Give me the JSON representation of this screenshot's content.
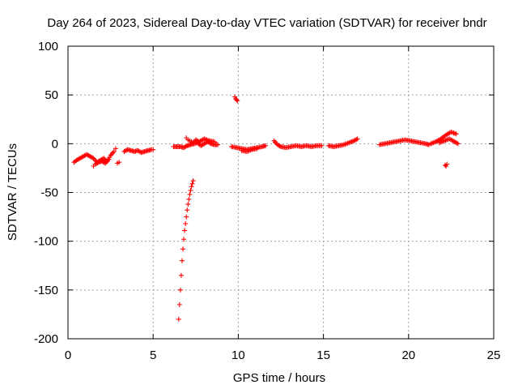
{
  "chart_data": {
    "type": "scatter",
    "title": "Day 264 of 2023, Sidereal Day-to-day VTEC variation (SDTVAR) for receiver bndr",
    "xlabel": "GPS time / hours",
    "ylabel": "SDTVAR / TECUs",
    "xlim": [
      0,
      25
    ],
    "ylim": [
      -200,
      100
    ],
    "xticks": [
      "0",
      "5",
      "10",
      "15",
      "20",
      "25"
    ],
    "yticks": [
      "100",
      "50",
      "0",
      "-50",
      "-100",
      "-150",
      "-200"
    ],
    "grid": true,
    "marker": "+",
    "color": "#ff0000",
    "series": [
      {
        "name": "SDTVAR",
        "segments": [
          {
            "x": [
              0.35,
              0.5,
              0.7,
              0.9,
              1.1,
              1.3,
              1.5,
              1.7,
              1.9,
              2.1,
              2.3,
              2.5,
              2.7,
              2.8
            ],
            "y": [
              -19,
              -17,
              -15,
              -13,
              -11,
              -13,
              -15,
              -19,
              -17,
              -15,
              -18,
              -12,
              -8,
              -5
            ]
          },
          {
            "x": [
              1.5,
              1.6,
              1.8,
              2.0,
              2.2,
              2.4
            ],
            "y": [
              -23,
              -21,
              -19,
              -18,
              -20,
              -16
            ]
          },
          {
            "x": [
              2.9,
              3.0
            ],
            "y": [
              -20,
              -19
            ]
          },
          {
            "x": [
              3.3,
              3.5,
              3.7,
              3.9,
              4.1,
              4.3,
              4.5,
              4.7,
              4.9,
              5.0
            ],
            "y": [
              -8,
              -6,
              -7,
              -8,
              -7,
              -9,
              -8,
              -7,
              -6,
              -6
            ]
          },
          {
            "x": [
              6.2,
              6.4,
              6.6,
              6.8,
              7.0,
              7.2,
              7.4,
              7.6,
              7.8,
              8.0,
              8.2,
              8.4,
              8.6,
              8.8
            ],
            "y": [
              -3,
              -3,
              -3,
              -4,
              -2,
              -1,
              0,
              1,
              -2,
              0,
              2,
              0,
              -1,
              -1
            ]
          },
          {
            "x": [
              6.95,
              7.05,
              7.15,
              7.25,
              7.35,
              7.5,
              7.7,
              8.0,
              8.3,
              8.6
            ],
            "y": [
              6,
              4,
              3,
              2,
              1,
              4,
              2,
              5,
              3,
              2
            ]
          },
          {
            "x": [
              6.5,
              6.55,
              6.6,
              6.65,
              6.7,
              6.75,
              6.8,
              6.85,
              6.9,
              6.95,
              7.0,
              7.05,
              7.1,
              7.15,
              7.2,
              7.25,
              7.3,
              7.35
            ],
            "y": [
              -180,
              -165,
              -150,
              -135,
              -120,
              -108,
              -98,
              -89,
              -82,
              -75,
              -68,
              -62,
              -57,
              -52,
              -48,
              -44,
              -41,
              -38
            ]
          },
          {
            "x": [
              9.8,
              9.85,
              9.9,
              9.95
            ],
            "y": [
              48,
              46,
              45,
              44
            ]
          },
          {
            "x": [
              9.6,
              9.9,
              10.2,
              10.5,
              10.8,
              11.1,
              11.4,
              11.6
            ],
            "y": [
              -3,
              -4,
              -5,
              -6,
              -5,
              -4,
              -3,
              -2
            ]
          },
          {
            "x": [
              10.2,
              10.5,
              10.8,
              11.1
            ],
            "y": [
              -7,
              -8,
              -6,
              -5
            ]
          },
          {
            "x": [
              12.1,
              12.3,
              12.5,
              12.8,
              13.1,
              13.4,
              13.7,
              14.0,
              14.3,
              14.6,
              14.9
            ],
            "y": [
              3,
              -1,
              -3,
              -4,
              -3,
              -2,
              -3,
              -2,
              -3,
              -2,
              -2
            ]
          },
          {
            "x": [
              15.3,
              15.6,
              15.9,
              16.2,
              16.5,
              16.8,
              17.0
            ],
            "y": [
              -2,
              -3,
              -2,
              -1,
              1,
              3,
              5
            ]
          },
          {
            "x": [
              18.3,
              18.6,
              18.9,
              19.2,
              19.5,
              19.8,
              20.1,
              20.4,
              20.7,
              21.0,
              21.2
            ],
            "y": [
              -1,
              0,
              1,
              2,
              3,
              4,
              3,
              2,
              1,
              0,
              -1
            ]
          },
          {
            "x": [
              21.3,
              21.6,
              21.9,
              22.2,
              22.5,
              22.8
            ],
            "y": [
              0,
              2,
              5,
              9,
              12,
              10
            ]
          },
          {
            "x": [
              21.8,
              22.1,
              22.4,
              22.7,
              22.9
            ],
            "y": [
              1,
              3,
              5,
              2,
              0
            ]
          },
          {
            "x": [
              22.15,
              22.2,
              22.25
            ],
            "y": [
              -22,
              -23,
              -21
            ]
          }
        ]
      }
    ]
  }
}
